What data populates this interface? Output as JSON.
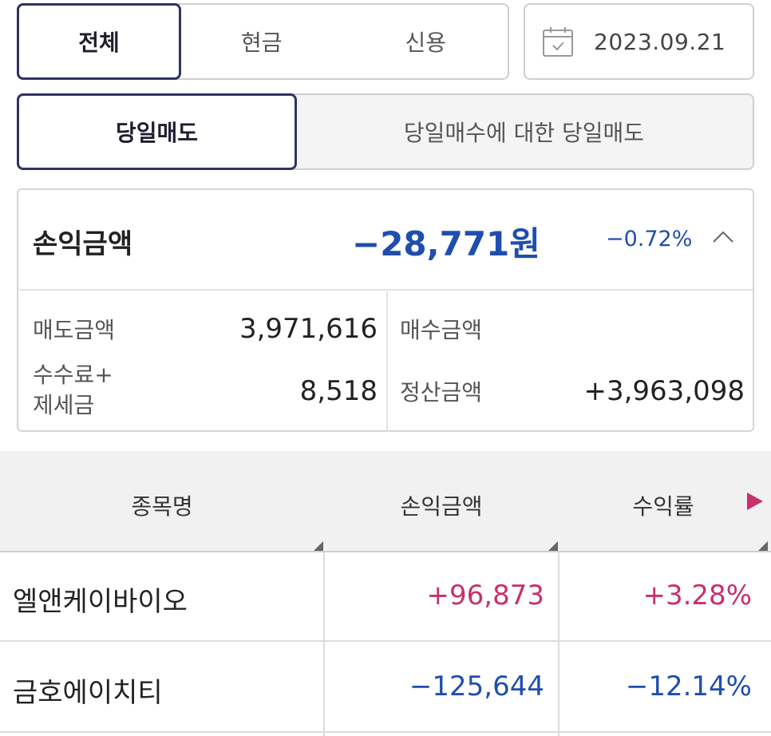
{
  "account_type_tabs": [
    {
      "label": "전체",
      "active": true
    },
    {
      "label": "현금",
      "active": false
    },
    {
      "label": "신용",
      "active": false
    }
  ],
  "date": "2023.09.21",
  "trade_tabs": [
    {
      "label": "당일매도",
      "active": true
    },
    {
      "label": "당일매수에 대한 당일매도",
      "active": false
    }
  ],
  "summary": {
    "profit_label": "손익금액",
    "profit_value": "−28,771원",
    "profit_rate": "−0.72%",
    "sell_amount_label": "매도금액",
    "sell_amount_value": "3,971,616",
    "fee_tax_label_line1": "수수료+",
    "fee_tax_label_line2": "제세금",
    "fee_tax_value": "8,518",
    "buy_amount_label": "매수금액",
    "buy_amount_value": "",
    "settlement_label": "정산금액",
    "settlement_value": "+3,963,098"
  },
  "table": {
    "headers": [
      "종목명",
      "손익금액",
      "수익률"
    ],
    "rows": [
      {
        "name": "엘앤케이바이오",
        "profit": "+96,873",
        "rate": "+3.28%"
      },
      {
        "name": "금호에이치티",
        "profit": "−125,644",
        "rate": "−12.14%"
      }
    ]
  },
  "colors": {
    "accent_border": "#2f3361",
    "negative": "#1f4eae",
    "positive": "#c8306d"
  }
}
